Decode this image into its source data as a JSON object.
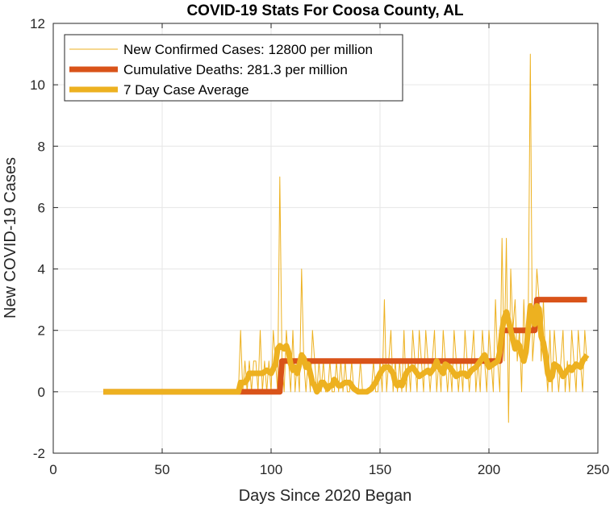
{
  "chart_data": {
    "type": "line",
    "title": "COVID-19 Stats For Coosa County, AL",
    "xlabel": "Days Since 2020 Began",
    "ylabel": "New COVID-19 Cases",
    "xlim": [
      0,
      250
    ],
    "ylim": [
      -2,
      12
    ],
    "xticks": [
      0,
      50,
      100,
      150,
      200,
      250
    ],
    "yticks": [
      -2,
      0,
      2,
      4,
      6,
      8,
      10,
      12
    ],
    "grid": true,
    "legend_position": "top-left",
    "series": [
      {
        "name": "New Confirmed Cases: 12800 per million",
        "color": "#EDB120",
        "width": 1,
        "points": [
          [
            23,
            0
          ],
          [
            85,
            0
          ],
          [
            86,
            2
          ],
          [
            87,
            0
          ],
          [
            88,
            1
          ],
          [
            89,
            0
          ],
          [
            90,
            1
          ],
          [
            91,
            0
          ],
          [
            92,
            1
          ],
          [
            93,
            1
          ],
          [
            94,
            0
          ],
          [
            95,
            2
          ],
          [
            96,
            0
          ],
          [
            97,
            1
          ],
          [
            98,
            0
          ],
          [
            99,
            1
          ],
          [
            100,
            0
          ],
          [
            101,
            2
          ],
          [
            102,
            1
          ],
          [
            103,
            0
          ],
          [
            104,
            7
          ],
          [
            105,
            1
          ],
          [
            106,
            0
          ],
          [
            107,
            2
          ],
          [
            108,
            1
          ],
          [
            109,
            0
          ],
          [
            110,
            2
          ],
          [
            111,
            0
          ],
          [
            112,
            1
          ],
          [
            113,
            0
          ],
          [
            114,
            4
          ],
          [
            115,
            1
          ],
          [
            116,
            0
          ],
          [
            117,
            1
          ],
          [
            118,
            0
          ],
          [
            119,
            2
          ],
          [
            120,
            1
          ],
          [
            121,
            0
          ],
          [
            122,
            1
          ],
          [
            123,
            0
          ],
          [
            124,
            1
          ],
          [
            125,
            0
          ],
          [
            126,
            0
          ],
          [
            127,
            1
          ],
          [
            128,
            0
          ],
          [
            129,
            0
          ],
          [
            130,
            1
          ],
          [
            131,
            0
          ],
          [
            132,
            1
          ],
          [
            133,
            0
          ],
          [
            134,
            1
          ],
          [
            135,
            0
          ],
          [
            136,
            0
          ],
          [
            137,
            1
          ],
          [
            138,
            0
          ],
          [
            139,
            0
          ],
          [
            140,
            0
          ],
          [
            141,
            1
          ],
          [
            142,
            0
          ],
          [
            143,
            0
          ],
          [
            144,
            0
          ],
          [
            145,
            0
          ],
          [
            146,
            0
          ],
          [
            147,
            1
          ],
          [
            148,
            0
          ],
          [
            149,
            0
          ],
          [
            150,
            1
          ],
          [
            151,
            0
          ],
          [
            152,
            3
          ],
          [
            153,
            0
          ],
          [
            154,
            1
          ],
          [
            155,
            2
          ],
          [
            156,
            0
          ],
          [
            157,
            1
          ],
          [
            158,
            0
          ],
          [
            159,
            1
          ],
          [
            160,
            0
          ],
          [
            161,
            2
          ],
          [
            162,
            0
          ],
          [
            163,
            1
          ],
          [
            164,
            0
          ],
          [
            165,
            2
          ],
          [
            166,
            1
          ],
          [
            167,
            0
          ],
          [
            168,
            2
          ],
          [
            169,
            1
          ],
          [
            170,
            0
          ],
          [
            171,
            2
          ],
          [
            172,
            1
          ],
          [
            173,
            0
          ],
          [
            174,
            1
          ],
          [
            175,
            2
          ],
          [
            176,
            0
          ],
          [
            177,
            1
          ],
          [
            178,
            0
          ],
          [
            179,
            2
          ],
          [
            180,
            1
          ],
          [
            181,
            0
          ],
          [
            182,
            1
          ],
          [
            183,
            0
          ],
          [
            184,
            2
          ],
          [
            185,
            1
          ],
          [
            186,
            0
          ],
          [
            187,
            1
          ],
          [
            188,
            0
          ],
          [
            189,
            2
          ],
          [
            190,
            1
          ],
          [
            191,
            0
          ],
          [
            192,
            1
          ],
          [
            193,
            2
          ],
          [
            194,
            0
          ],
          [
            195,
            1
          ],
          [
            196,
            0
          ],
          [
            197,
            2
          ],
          [
            198,
            1
          ],
          [
            199,
            0
          ],
          [
            200,
            2
          ],
          [
            201,
            1
          ],
          [
            202,
            0
          ],
          [
            203,
            3
          ],
          [
            204,
            1
          ],
          [
            205,
            0
          ],
          [
            206,
            5
          ],
          [
            207,
            1
          ],
          [
            208,
            5
          ],
          [
            209,
            -1
          ],
          [
            210,
            4
          ],
          [
            211,
            2
          ],
          [
            212,
            3
          ],
          [
            213,
            1
          ],
          [
            214,
            2
          ],
          [
            215,
            0
          ],
          [
            216,
            3
          ],
          [
            217,
            1
          ],
          [
            218,
            2
          ],
          [
            219,
            11
          ],
          [
            220,
            1
          ],
          [
            221,
            2
          ],
          [
            222,
            4
          ],
          [
            223,
            3
          ],
          [
            224,
            1
          ],
          [
            225,
            3
          ],
          [
            226,
            1
          ],
          [
            227,
            0
          ],
          [
            228,
            2
          ],
          [
            229,
            0
          ],
          [
            230,
            2
          ],
          [
            231,
            1
          ],
          [
            232,
            0
          ],
          [
            233,
            1
          ],
          [
            234,
            2
          ],
          [
            235,
            0
          ],
          [
            236,
            1
          ],
          [
            237,
            0
          ],
          [
            238,
            2
          ],
          [
            239,
            1
          ],
          [
            240,
            0
          ],
          [
            241,
            2
          ],
          [
            242,
            1
          ],
          [
            243,
            0
          ],
          [
            244,
            2
          ],
          [
            245,
            1
          ]
        ]
      },
      {
        "name": "Cumulative Deaths: 281.3 per million",
        "color": "#D95319",
        "width": 7,
        "points": [
          [
            23,
            0
          ],
          [
            85,
            0
          ],
          [
            86,
            0
          ],
          [
            104,
            0
          ],
          [
            105,
            1
          ],
          [
            205,
            1
          ],
          [
            206,
            2
          ],
          [
            221,
            2
          ],
          [
            222,
            3
          ],
          [
            245,
            3
          ]
        ]
      },
      {
        "name": "7 Day Case Average",
        "color": "#EDB120",
        "width": 7,
        "points": [
          [
            23,
            0
          ],
          [
            85,
            0
          ],
          [
            86,
            0.3
          ],
          [
            88,
            0.3
          ],
          [
            89,
            0.4
          ],
          [
            90,
            0.6
          ],
          [
            93,
            0.6
          ],
          [
            96,
            0.6
          ],
          [
            98,
            0.7
          ],
          [
            100,
            0.6
          ],
          [
            102,
            0.9
          ],
          [
            103,
            1.4
          ],
          [
            104,
            1.5
          ],
          [
            106,
            1.4
          ],
          [
            107,
            1.5
          ],
          [
            108,
            1.3
          ],
          [
            109,
            0.9
          ],
          [
            110,
            0.7
          ],
          [
            111,
            0.8
          ],
          [
            112,
            0.6
          ],
          [
            113,
            0.9
          ],
          [
            114,
            1.2
          ],
          [
            115,
            1.1
          ],
          [
            116,
            0.8
          ],
          [
            117,
            0.9
          ],
          [
            118,
            0.6
          ],
          [
            119,
            0.3
          ],
          [
            120,
            0.2
          ],
          [
            121,
            0.0
          ],
          [
            122,
            0.1
          ],
          [
            123,
            0.3
          ],
          [
            124,
            0.3
          ],
          [
            125,
            0.2
          ],
          [
            126,
            0.1
          ],
          [
            127,
            0.2
          ],
          [
            128,
            0.2
          ],
          [
            129,
            0.4
          ],
          [
            130,
            0.3
          ],
          [
            131,
            0.2
          ],
          [
            132,
            0.2
          ],
          [
            134,
            0.3
          ],
          [
            136,
            0.3
          ],
          [
            138,
            0.1
          ],
          [
            140,
            0.0
          ],
          [
            144,
            0.0
          ],
          [
            146,
            0.1
          ],
          [
            148,
            0.3
          ],
          [
            150,
            0.6
          ],
          [
            152,
            0.8
          ],
          [
            154,
            0.8
          ],
          [
            156,
            0.6
          ],
          [
            157,
            0.3
          ],
          [
            158,
            0.2
          ],
          [
            159,
            0.3
          ],
          [
            160,
            0.2
          ],
          [
            161,
            0.4
          ],
          [
            162,
            0.6
          ],
          [
            163,
            0.7
          ],
          [
            165,
            0.8
          ],
          [
            167,
            0.6
          ],
          [
            168,
            0.5
          ],
          [
            170,
            0.6
          ],
          [
            172,
            0.7
          ],
          [
            173,
            0.6
          ],
          [
            175,
            0.8
          ],
          [
            176,
            1.0
          ],
          [
            177,
            0.8
          ],
          [
            178,
            0.7
          ],
          [
            179,
            0.6
          ],
          [
            180,
            0.9
          ],
          [
            182,
            0.8
          ],
          [
            184,
            0.6
          ],
          [
            185,
            0.5
          ],
          [
            187,
            0.6
          ],
          [
            189,
            0.6
          ],
          [
            190,
            0.5
          ],
          [
            192,
            0.7
          ],
          [
            194,
            0.8
          ],
          [
            196,
            1.0
          ],
          [
            198,
            1.2
          ],
          [
            199,
            1.0
          ],
          [
            200,
            0.8
          ],
          [
            202,
            0.9
          ],
          [
            204,
            1.0
          ],
          [
            205,
            1.3
          ],
          [
            206,
            2.0
          ],
          [
            207,
            2.4
          ],
          [
            208,
            2.6
          ],
          [
            209,
            2.3
          ],
          [
            210,
            2.0
          ],
          [
            211,
            1.7
          ],
          [
            212,
            1.4
          ],
          [
            213,
            1.6
          ],
          [
            214,
            1.5
          ],
          [
            215,
            1.2
          ],
          [
            216,
            1.0
          ],
          [
            217,
            1.3
          ],
          [
            218,
            2.0
          ],
          [
            219,
            2.8
          ],
          [
            220,
            2.5
          ],
          [
            221,
            2.2
          ],
          [
            222,
            2.8
          ],
          [
            223,
            2.7
          ],
          [
            224,
            1.8
          ],
          [
            225,
            1.6
          ],
          [
            226,
            1.2
          ],
          [
            227,
            0.6
          ],
          [
            228,
            0.4
          ],
          [
            229,
            0.5
          ],
          [
            230,
            0.9
          ],
          [
            232,
            0.8
          ],
          [
            234,
            0.5
          ],
          [
            235,
            0.6
          ],
          [
            237,
            0.8
          ],
          [
            238,
            0.7
          ],
          [
            240,
            0.9
          ],
          [
            242,
            0.8
          ],
          [
            243,
            1.0
          ],
          [
            245,
            1.2
          ]
        ]
      }
    ]
  }
}
